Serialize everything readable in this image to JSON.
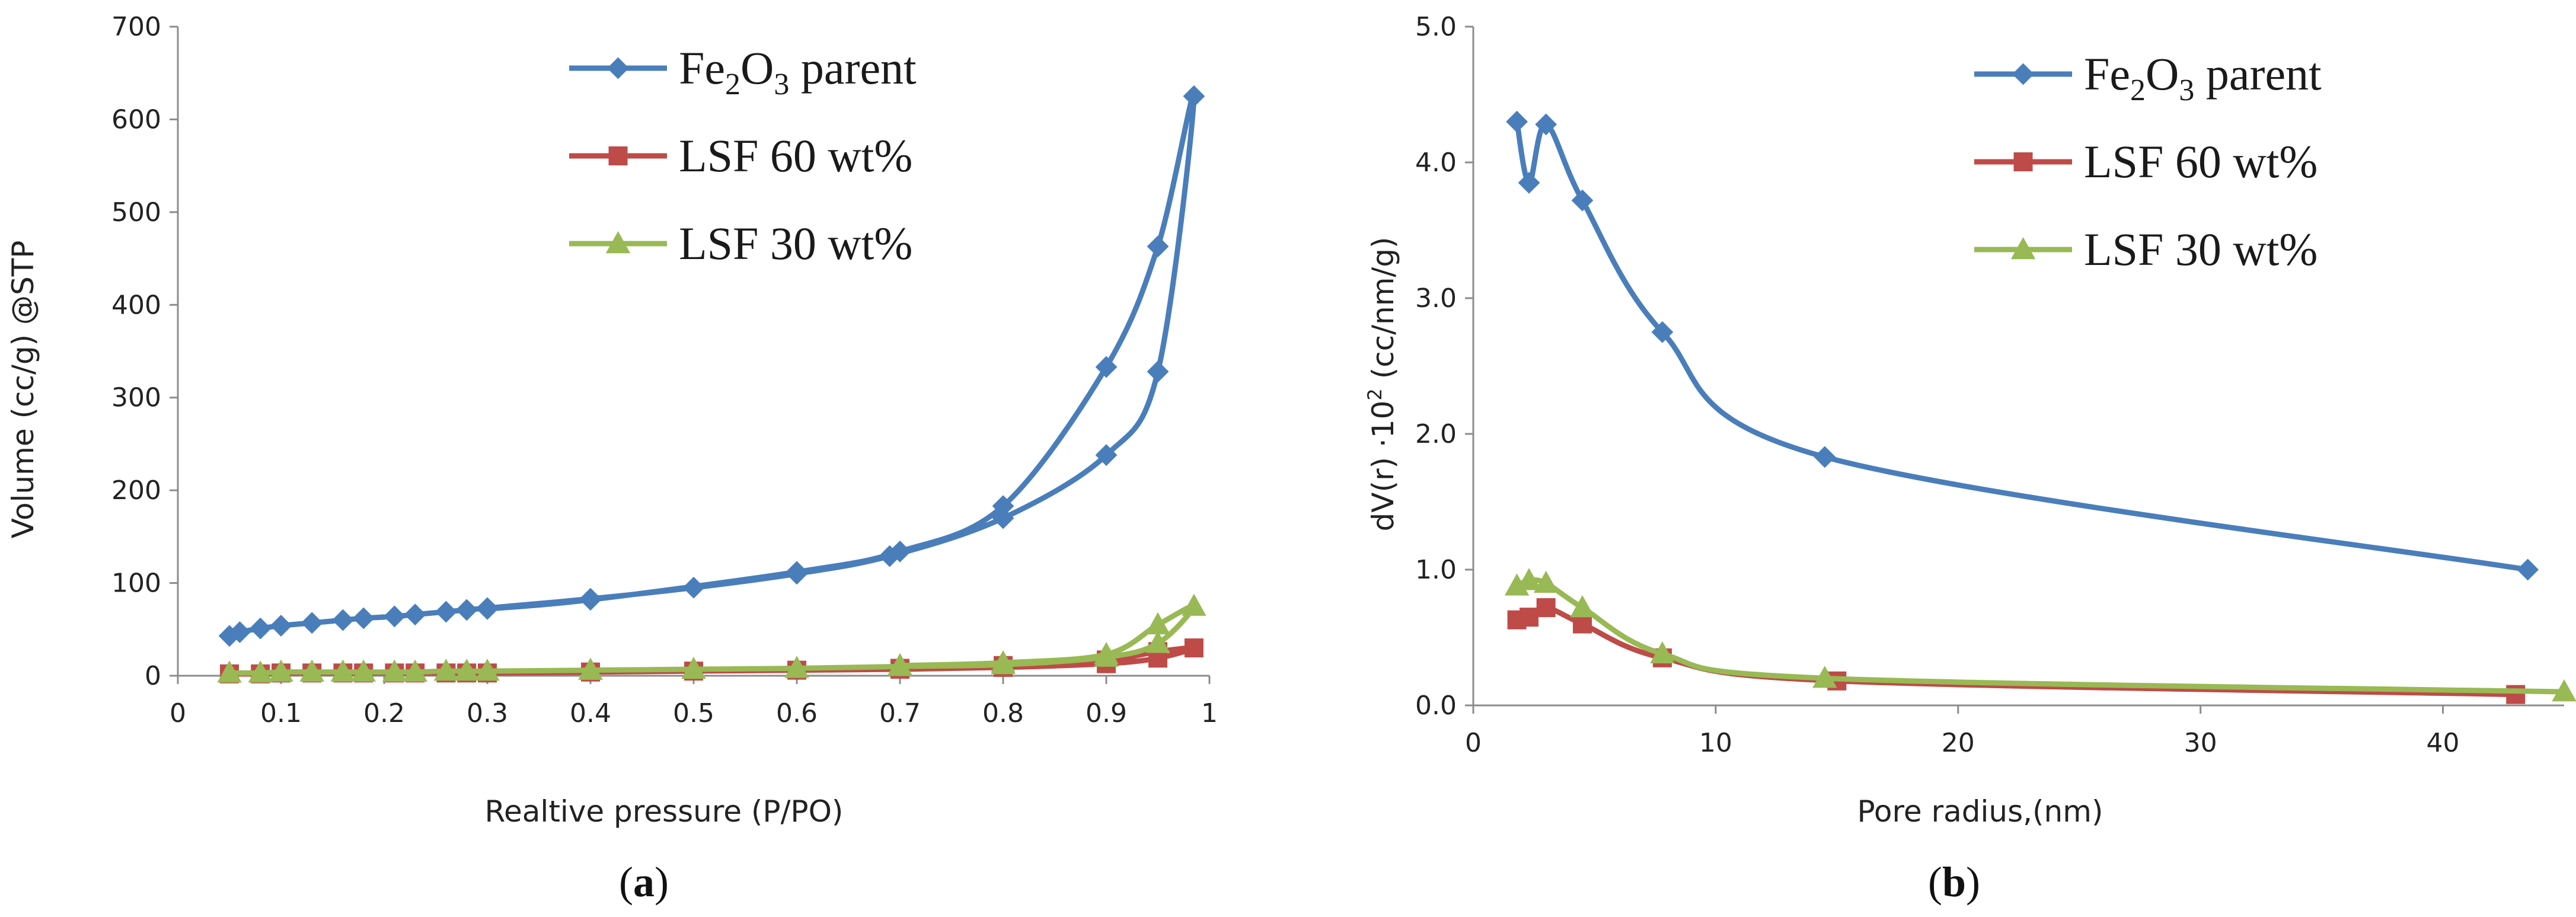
{
  "chart_data": [
    {
      "type": "line",
      "panel": "a",
      "title": "",
      "caption_open": "(",
      "caption_letter": "a",
      "caption_close": ")",
      "xlabel": "Realtive pressure (P/PO)",
      "ylabel": "Volume (cc/g) @STP",
      "xlim": [
        0,
        1
      ],
      "ylim": [
        0,
        700
      ],
      "xticks": [
        0,
        0.1,
        0.2,
        0.3,
        0.4,
        0.5,
        0.6,
        0.7,
        0.8,
        0.9,
        1
      ],
      "xtick_labels": [
        "0",
        "0.1",
        "0.2",
        "0.3",
        "0.4",
        "0.5",
        "0.6",
        "0.7",
        "0.8",
        "0.9",
        "1"
      ],
      "yticks": [
        0,
        100,
        200,
        300,
        400,
        500,
        600,
        700
      ],
      "ytick_labels": [
        "0",
        "100",
        "200",
        "300",
        "400",
        "500",
        "600",
        "700"
      ],
      "grid": false,
      "legend_position": "top-center",
      "series": [
        {
          "name": "Fe2O3 parent",
          "legend_label": {
            "pre": "Fe",
            "sub1": "2",
            "mid": "O",
            "sub2": "3",
            "post": " parent"
          },
          "color": "#4a7ebb",
          "marker": "diamond",
          "points": [
            [
              0.05,
              43
            ],
            [
              0.06,
              47
            ],
            [
              0.08,
              51
            ],
            [
              0.1,
              54
            ],
            [
              0.13,
              57
            ],
            [
              0.16,
              60
            ],
            [
              0.18,
              62
            ],
            [
              0.21,
              64
            ],
            [
              0.23,
              66
            ],
            [
              0.26,
              69
            ],
            [
              0.28,
              71
            ],
            [
              0.3,
              73
            ],
            [
              0.4,
              83
            ],
            [
              0.5,
              95
            ],
            [
              0.6,
              110
            ],
            [
              0.69,
              129
            ],
            [
              0.8,
              170
            ],
            [
              0.9,
              238
            ],
            [
              0.95,
              328
            ],
            [
              0.985,
              625
            ],
            [
              0.95,
              463
            ],
            [
              0.9,
              333
            ],
            [
              0.8,
              183
            ],
            [
              0.7,
              134
            ],
            [
              0.6,
              112
            ],
            [
              0.4,
              82
            ],
            [
              0.3,
              72
            ]
          ]
        },
        {
          "name": "LSF 60 wt%",
          "legend_label": {
            "pre": "LSF 60 wt%"
          },
          "color": "#be4b48",
          "marker": "square",
          "points": [
            [
              0.05,
              2
            ],
            [
              0.08,
              2
            ],
            [
              0.1,
              3
            ],
            [
              0.13,
              3
            ],
            [
              0.16,
              3
            ],
            [
              0.18,
              3
            ],
            [
              0.21,
              3
            ],
            [
              0.23,
              3
            ],
            [
              0.26,
              3
            ],
            [
              0.28,
              3
            ],
            [
              0.3,
              3
            ],
            [
              0.4,
              4
            ],
            [
              0.5,
              5
            ],
            [
              0.6,
              6
            ],
            [
              0.7,
              7
            ],
            [
              0.8,
              9
            ],
            [
              0.9,
              13
            ],
            [
              0.95,
              19
            ],
            [
              0.985,
              30
            ],
            [
              0.95,
              26
            ],
            [
              0.9,
              17
            ],
            [
              0.8,
              11
            ],
            [
              0.7,
              8
            ]
          ]
        },
        {
          "name": "LSF 30 wt%",
          "legend_label": {
            "pre": "LSF 30 wt%"
          },
          "color": "#98b954",
          "marker": "triangle",
          "points": [
            [
              0.05,
              3
            ],
            [
              0.08,
              3
            ],
            [
              0.1,
              4
            ],
            [
              0.13,
              4
            ],
            [
              0.16,
              4
            ],
            [
              0.18,
              4
            ],
            [
              0.21,
              4
            ],
            [
              0.23,
              4
            ],
            [
              0.26,
              5
            ],
            [
              0.28,
              5
            ],
            [
              0.3,
              5
            ],
            [
              0.4,
              6
            ],
            [
              0.5,
              7
            ],
            [
              0.6,
              8
            ],
            [
              0.7,
              10
            ],
            [
              0.8,
              12
            ],
            [
              0.9,
              20
            ],
            [
              0.95,
              35
            ],
            [
              0.985,
              75
            ],
            [
              0.95,
              55
            ],
            [
              0.9,
              23
            ],
            [
              0.8,
              14
            ],
            [
              0.7,
              11
            ]
          ]
        }
      ]
    },
    {
      "type": "line",
      "panel": "b",
      "title": "",
      "caption_open": "(",
      "caption_letter": "b",
      "caption_close": ")",
      "xlabel": "Pore radius,(nm)",
      "ylabel_pre": "dV(r) ·10",
      "ylabel_sup": "2",
      "ylabel_post": " (cc/nm/g)",
      "xlim": [
        0,
        45
      ],
      "ylim": [
        0,
        5
      ],
      "xticks": [
        0,
        10,
        20,
        30,
        40
      ],
      "xtick_labels": [
        "0",
        "10",
        "20",
        "30",
        "40"
      ],
      "yticks": [
        0,
        1,
        2,
        3,
        4,
        5
      ],
      "ytick_labels": [
        "0.0",
        "1.0",
        "2.0",
        "3.0",
        "4.0",
        "5.0"
      ],
      "grid": false,
      "legend_position": "top-right",
      "series": [
        {
          "name": "Fe2O3 parent",
          "legend_label": {
            "pre": "Fe",
            "sub1": "2",
            "mid": "O",
            "sub2": "3",
            "post": " parent"
          },
          "color": "#4a7ebb",
          "marker": "diamond",
          "points": [
            [
              1.8,
              4.3
            ],
            [
              2.3,
              3.85
            ],
            [
              3.0,
              4.28
            ],
            [
              4.5,
              3.72
            ],
            [
              7.8,
              2.75
            ],
            [
              14.5,
              1.83
            ],
            [
              43.5,
              1.0
            ]
          ]
        },
        {
          "name": "LSF 60 wt%",
          "legend_label": {
            "pre": "LSF 60 wt%"
          },
          "color": "#be4b48",
          "marker": "square",
          "points": [
            [
              1.8,
              0.63
            ],
            [
              2.3,
              0.65
            ],
            [
              3.0,
              0.72
            ],
            [
              4.5,
              0.6
            ],
            [
              7.8,
              0.35
            ],
            [
              15.0,
              0.18
            ],
            [
              43.0,
              0.08
            ]
          ]
        },
        {
          "name": "LSF 30 wt%",
          "legend_label": {
            "pre": "LSF 30 wt%"
          },
          "color": "#98b954",
          "marker": "triangle",
          "points": [
            [
              1.8,
              0.88
            ],
            [
              2.3,
              0.92
            ],
            [
              3.0,
              0.9
            ],
            [
              4.5,
              0.72
            ],
            [
              7.8,
              0.38
            ],
            [
              14.5,
              0.2
            ],
            [
              45.0,
              0.1
            ]
          ]
        }
      ]
    }
  ]
}
